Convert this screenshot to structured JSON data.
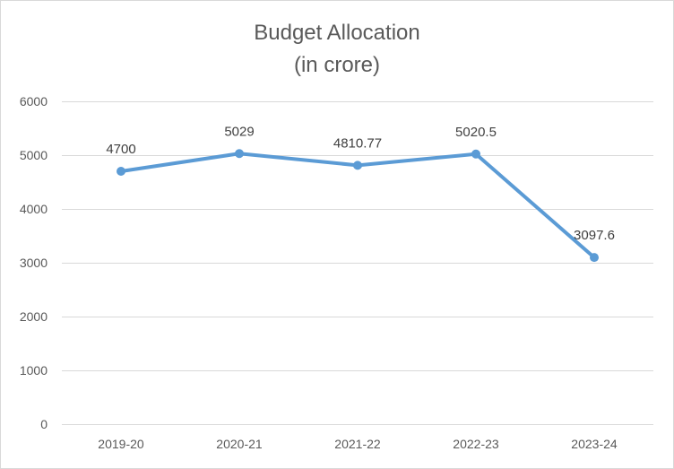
{
  "chart_data": {
    "type": "line",
    "title": "Budget Allocation",
    "subtitle": "(in crore)",
    "xlabel": "",
    "ylabel": "",
    "categories": [
      "2019-20",
      "2020-21",
      "2021-22",
      "2022-23",
      "2023-24"
    ],
    "series": [
      {
        "values": [
          4700,
          5029,
          4810.77,
          5020.5,
          3097.6
        ],
        "labels": [
          "4700",
          "5029",
          "4810.77",
          "5020.5",
          "3097.6"
        ]
      }
    ],
    "ylim": [
      0,
      6000
    ],
    "yticks": [
      0,
      1000,
      2000,
      3000,
      4000,
      5000,
      6000
    ],
    "grid": true,
    "legend": "none",
    "color": "#5b9bd5",
    "markers": true,
    "data_labels": true
  }
}
